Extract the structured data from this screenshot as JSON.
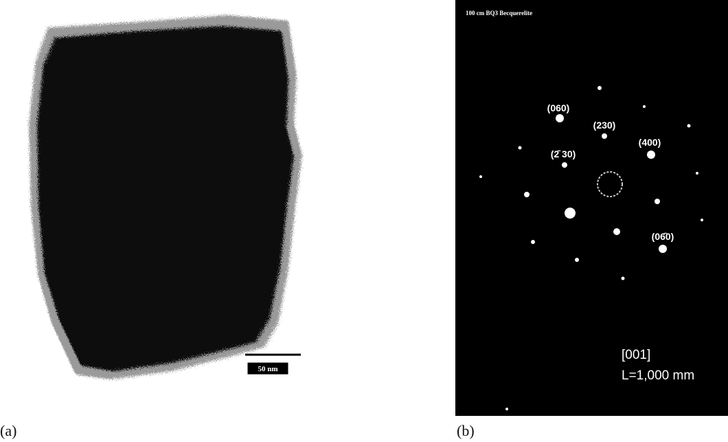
{
  "panels": [
    {
      "label": "(a)",
      "scale_bar": "50 nm"
    },
    {
      "label": "(b)",
      "title": "100 cm BQ3 Becquerelite",
      "annotations": [
        "(060)",
        "(230)",
        "(400)",
        "(2̄ 30)",
        "(06̄0)"
      ],
      "zone_axis": "[001]",
      "camera_length": "L=1,000 mm"
    }
  ]
}
